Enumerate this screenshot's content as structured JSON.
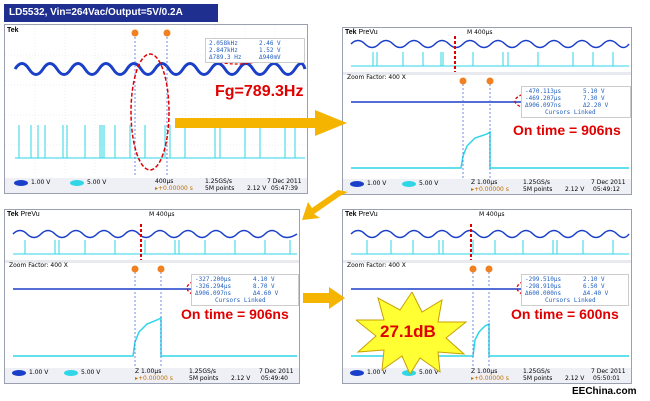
{
  "title": "LD5532, Vin=264Vac/Output=5V/0.2A",
  "fg_label": "Fg=789.3Hz",
  "panels": {
    "top_left": {
      "brand": "Tek",
      "measurements": [
        "2.058kHz",
        "2.46 V",
        "2.847kHz",
        "1.52 V",
        "Δ789.3 Hz",
        "Δ940mV"
      ],
      "status": [
        "1.00 V",
        "5.00 V",
        "400µs",
        "1.25GS/s",
        "7 Dec 2011",
        "▸+0.00000 s",
        "5M points",
        "2.12 V",
        "05:47:39"
      ]
    },
    "top_right": {
      "brand": "Tek",
      "prevu": "PreVu",
      "m_label": "M 400µs",
      "zoom": "Zoom Factor: 400 X",
      "measurements": [
        "-470.113µs",
        "5.10 V",
        "-469.207µs",
        "7.30 V",
        "Δ906.097ns",
        "Δ2.20 V",
        "Cursors Linked"
      ],
      "on_time": "On time = 906ns",
      "status": [
        "1.00 V",
        "5.00 V",
        "Z 1.00µs",
        "1.25GS/s",
        "7 Dec 2011",
        "▸+0.00000 s",
        "5M points",
        "2.12 V",
        "05:49:12"
      ]
    },
    "bottom_left": {
      "brand": "Tek",
      "prevu": "PreVu",
      "m_label": "M 400µs",
      "zoom": "Zoom Factor: 400 X",
      "measurements": [
        "-327.200µs",
        "4.10 V",
        "-326.294µs",
        "8.70 V",
        "Δ906.097ns",
        "Δ4.60 V",
        "Cursors Linked"
      ],
      "on_time": "On time = 906ns",
      "status": [
        "1.00 V",
        "5.00 V",
        "Z 1.00µs",
        "1.25GS/s",
        "7 Dec 2011",
        "▸+0.00000 s",
        "5M points",
        "2.12 V",
        "05:49:40"
      ]
    },
    "bottom_right": {
      "brand": "Tek",
      "prevu": "PreVu",
      "m_label": "M 400µs",
      "zoom": "Zoom Factor: 400 X",
      "measurements": [
        "-299.510µs",
        "2.10 V",
        "-298.910µs",
        "6.50 V",
        "Δ600.000ns",
        "Δ4.40 V",
        "Cursors Linked"
      ],
      "on_time": "On time = 600ns",
      "burst": "27.1dB",
      "status": [
        "1.00 V",
        "5.00 V",
        "Z 1.00µs",
        "1.25GS/s",
        "7 Dec 2011",
        "▸+0.00000 s",
        "5M points",
        "2.12 V",
        "05:50:01"
      ]
    }
  },
  "footer": "EEChina.com",
  "colors": {
    "blue_trace": "#1a3fc8",
    "cyan_trace": "#2ed6e6",
    "red": "#e00000",
    "arrow": "#f5b400",
    "burst": "#ffff33"
  }
}
